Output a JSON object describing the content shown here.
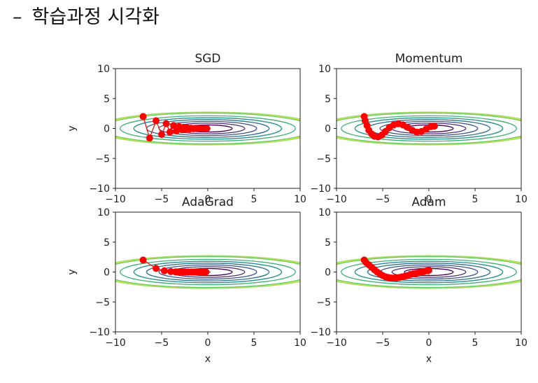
{
  "heading": {
    "bullet": "–",
    "text": "학습과정 시각화"
  },
  "chart_data": [
    {
      "type": "line",
      "title": "SGD",
      "xlabel": "",
      "ylabel": "y",
      "xlim": [
        -10,
        10
      ],
      "ylim": [
        -10,
        10
      ],
      "xticks": [
        -10,
        -5,
        0,
        5,
        10
      ],
      "yticks": [
        -10,
        -5,
        0,
        5,
        10
      ],
      "grid": false,
      "contour": "x^2/20 + y^2",
      "color": "#ff0000",
      "series": [
        {
          "x": [
            -7.0,
            -6.3,
            -5.6,
            -5.0,
            -4.5,
            -4.1,
            -3.7,
            -3.4,
            -3.1,
            -2.8,
            -2.6,
            -2.4,
            -2.2,
            -2.0,
            -1.8,
            -1.6,
            -1.4,
            -1.2,
            -1.0,
            -0.8,
            -0.6,
            -0.4,
            -0.2,
            -0.1
          ],
          "y": [
            2.0,
            -1.6,
            1.3,
            -1.0,
            0.8,
            -0.6,
            0.5,
            -0.4,
            0.3,
            -0.2,
            0.2,
            -0.1,
            0.1,
            -0.1,
            0.05,
            -0.05,
            0.03,
            -0.02,
            0.01,
            -0.01,
            0.0,
            0.0,
            0.0,
            0.0
          ]
        }
      ]
    },
    {
      "type": "line",
      "title": "Momentum",
      "xlabel": "",
      "ylabel": "",
      "xlim": [
        -10,
        10
      ],
      "ylim": [
        -10,
        10
      ],
      "xticks": [
        -10,
        -5,
        0,
        5,
        10
      ],
      "yticks": [
        -10,
        -5,
        0,
        5,
        10
      ],
      "grid": false,
      "contour": "x^2/20 + y^2",
      "color": "#ff0000",
      "series": [
        {
          "x": [
            -7.0,
            -6.9,
            -6.7,
            -6.5,
            -6.2,
            -5.9,
            -5.5,
            -5.1,
            -4.7,
            -4.3,
            -3.8,
            -3.3,
            -2.8,
            -2.3,
            -1.8,
            -1.3,
            -0.8,
            -0.3,
            0.2,
            0.6
          ],
          "y": [
            2.0,
            1.3,
            0.5,
            -0.3,
            -0.9,
            -1.3,
            -1.4,
            -1.1,
            -0.5,
            0.1,
            0.6,
            0.8,
            0.6,
            0.2,
            -0.3,
            -0.6,
            -0.5,
            -0.1,
            0.3,
            0.4
          ]
        }
      ]
    },
    {
      "type": "line",
      "title": "AdaGrad",
      "xlabel": "",
      "ylabel": "y",
      "xlim": [
        -10,
        10
      ],
      "ylim": [
        -10,
        10
      ],
      "xticks": [
        -10,
        -5,
        0,
        5,
        10
      ],
      "yticks": [
        -10,
        -5,
        0,
        5,
        10
      ],
      "grid": false,
      "contour": "x^2/20 + y^2",
      "color": "#ff0000",
      "series": [
        {
          "x": [
            -7.0,
            -5.6,
            -4.7,
            -4.0,
            -3.5,
            -3.1,
            -2.7,
            -2.4,
            -2.1,
            -1.8,
            -1.6,
            -1.4,
            -1.2,
            -1.0,
            -0.8,
            -0.6,
            -0.4,
            -0.2
          ],
          "y": [
            2.0,
            0.6,
            0.2,
            0.08,
            0.03,
            0.01,
            0.0,
            0.0,
            0.0,
            0.0,
            0.0,
            0.0,
            0.0,
            0.0,
            0.0,
            0.0,
            0.0,
            0.0
          ]
        }
      ]
    },
    {
      "type": "line",
      "title": "Adam",
      "xlabel": "x",
      "ylabel": "",
      "xlim": [
        -10,
        10
      ],
      "ylim": [
        -10,
        10
      ],
      "xticks": [
        -10,
        -5,
        0,
        5,
        10
      ],
      "yticks": [
        -10,
        -5,
        0,
        5,
        10
      ],
      "grid": false,
      "contour": "x^2/20 + y^2",
      "color": "#ff0000",
      "series": [
        {
          "x": [
            -7.0,
            -6.8,
            -6.5,
            -6.2,
            -5.9,
            -5.6,
            -5.3,
            -5.0,
            -4.7,
            -4.4,
            -4.1,
            -3.8,
            -3.5,
            -3.2,
            -2.9,
            -2.6,
            -2.3,
            -2.0,
            -1.7,
            -1.4,
            -1.1,
            -0.8,
            -0.5,
            -0.2,
            0.0
          ],
          "y": [
            2.0,
            1.6,
            1.2,
            0.8,
            0.4,
            0.0,
            -0.3,
            -0.6,
            -0.8,
            -0.9,
            -1.0,
            -1.0,
            -1.0,
            -0.9,
            -0.8,
            -0.7,
            -0.6,
            -0.4,
            -0.3,
            -0.2,
            -0.1,
            0.0,
            0.1,
            0.2,
            0.3
          ]
        }
      ]
    }
  ],
  "extra_xlabel_left": "x"
}
